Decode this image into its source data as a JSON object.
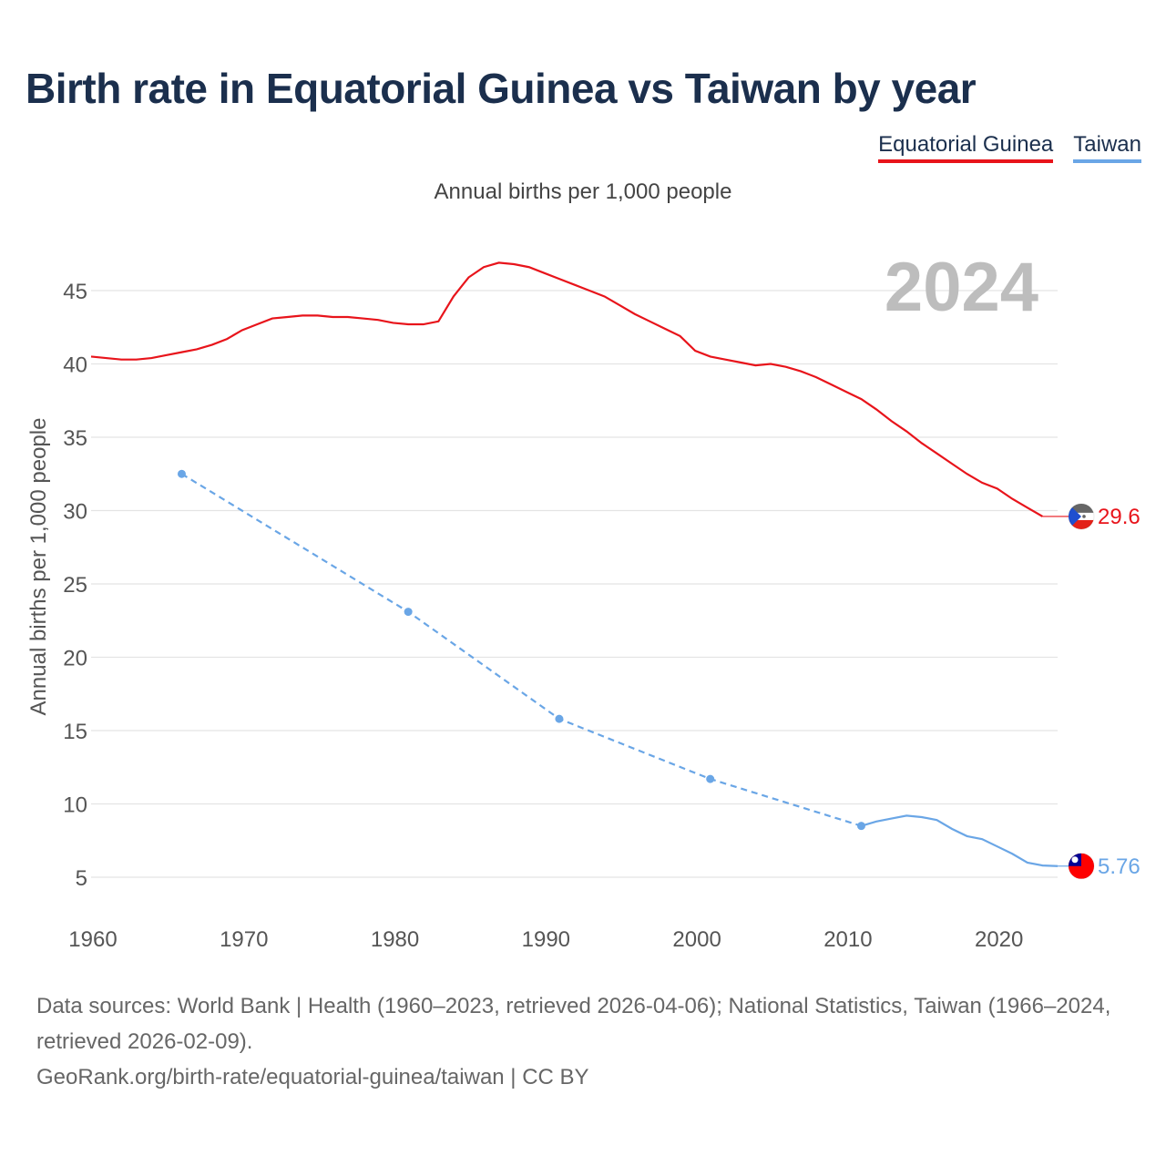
{
  "title": "Birth rate in Equatorial Guinea vs Taiwan by year",
  "legend": [
    {
      "label": "Equatorial Guinea",
      "color": "#e8141b"
    },
    {
      "label": "Taiwan",
      "color": "#6aa6e6"
    }
  ],
  "subtitle": "Annual births per 1,000 people",
  "year_overlay": "2024",
  "source": {
    "line1": "Data sources: World Bank | Health (1960–2023, retrieved 2026-04-06); National Statistics, Taiwan (1966–2024, retrieved 2026-02-09).",
    "line2": "GeoRank.org/birth-rate/equatorial-guinea/taiwan | CC BY"
  },
  "chart_data": {
    "type": "line",
    "title": "Birth rate in Equatorial Guinea vs Taiwan by year",
    "ylabel": "Annual births per 1,000 people",
    "xlabel": "",
    "xlim": [
      1960,
      2024
    ],
    "ylim": [
      2,
      48
    ],
    "x_ticks": [
      1960,
      1970,
      1980,
      1990,
      2000,
      2010,
      2020
    ],
    "x_tick_labels": [
      "1960",
      "1970",
      "1980",
      "1990",
      "2000",
      "2010",
      "2020"
    ],
    "y_ticks": [
      5,
      10,
      15,
      20,
      25,
      30,
      35,
      40,
      45
    ],
    "y_tick_labels": [
      "5",
      "10",
      "15",
      "20",
      "25",
      "30",
      "35",
      "40",
      "45"
    ],
    "grid": true,
    "series": [
      {
        "name": "Equatorial Guinea",
        "color": "#e8141b",
        "end_label": "29.6",
        "end_value": 29.6,
        "flag": "equatorial-guinea-flag",
        "points": [
          [
            1960,
            40.5
          ],
          [
            1961,
            40.4
          ],
          [
            1962,
            40.3
          ],
          [
            1963,
            40.3
          ],
          [
            1964,
            40.4
          ],
          [
            1965,
            40.6
          ],
          [
            1966,
            40.8
          ],
          [
            1967,
            41.0
          ],
          [
            1968,
            41.3
          ],
          [
            1969,
            41.7
          ],
          [
            1970,
            42.3
          ],
          [
            1971,
            42.7
          ],
          [
            1972,
            43.1
          ],
          [
            1973,
            43.2
          ],
          [
            1974,
            43.3
          ],
          [
            1975,
            43.3
          ],
          [
            1976,
            43.2
          ],
          [
            1977,
            43.2
          ],
          [
            1978,
            43.1
          ],
          [
            1979,
            43.0
          ],
          [
            1980,
            42.8
          ],
          [
            1981,
            42.7
          ],
          [
            1982,
            42.7
          ],
          [
            1983,
            42.9
          ],
          [
            1984,
            44.6
          ],
          [
            1985,
            45.9
          ],
          [
            1986,
            46.6
          ],
          [
            1987,
            46.9
          ],
          [
            1988,
            46.8
          ],
          [
            1989,
            46.6
          ],
          [
            1990,
            46.2
          ],
          [
            1991,
            45.8
          ],
          [
            1992,
            45.4
          ],
          [
            1993,
            45.0
          ],
          [
            1994,
            44.6
          ],
          [
            1995,
            44.0
          ],
          [
            1996,
            43.4
          ],
          [
            1997,
            42.9
          ],
          [
            1998,
            42.4
          ],
          [
            1999,
            41.9
          ],
          [
            2000,
            40.9
          ],
          [
            2001,
            40.5
          ],
          [
            2002,
            40.3
          ],
          [
            2003,
            40.1
          ],
          [
            2004,
            39.9
          ],
          [
            2005,
            40.0
          ],
          [
            2006,
            39.8
          ],
          [
            2007,
            39.5
          ],
          [
            2008,
            39.1
          ],
          [
            2009,
            38.6
          ],
          [
            2010,
            38.1
          ],
          [
            2011,
            37.6
          ],
          [
            2012,
            36.9
          ],
          [
            2013,
            36.1
          ],
          [
            2014,
            35.4
          ],
          [
            2015,
            34.6
          ],
          [
            2016,
            33.9
          ],
          [
            2017,
            33.2
          ],
          [
            2018,
            32.5
          ],
          [
            2019,
            31.9
          ],
          [
            2020,
            31.5
          ],
          [
            2021,
            30.8
          ],
          [
            2022,
            30.2
          ],
          [
            2023,
            29.6
          ]
        ]
      },
      {
        "name": "Taiwan",
        "color": "#6aa6e6",
        "end_label": "5.76",
        "end_value": 5.76,
        "flag": "taiwan-flag",
        "markers": [
          [
            1966,
            32.5
          ],
          [
            1981,
            23.1
          ],
          [
            1991,
            15.8
          ],
          [
            2001,
            11.7
          ],
          [
            2011,
            8.5
          ]
        ],
        "points": [
          [
            1966,
            32.5
          ],
          [
            1981,
            23.1
          ],
          [
            1991,
            15.8
          ],
          [
            2001,
            11.7
          ],
          [
            2011,
            8.5
          ],
          [
            2012,
            8.8
          ],
          [
            2013,
            9.0
          ],
          [
            2014,
            9.2
          ],
          [
            2015,
            9.1
          ],
          [
            2016,
            8.9
          ],
          [
            2017,
            8.3
          ],
          [
            2018,
            7.8
          ],
          [
            2019,
            7.6
          ],
          [
            2020,
            7.1
          ],
          [
            2021,
            6.6
          ],
          [
            2022,
            6.0
          ],
          [
            2023,
            5.8
          ],
          [
            2024,
            5.76
          ]
        ],
        "dashed_until": 2011
      }
    ]
  }
}
